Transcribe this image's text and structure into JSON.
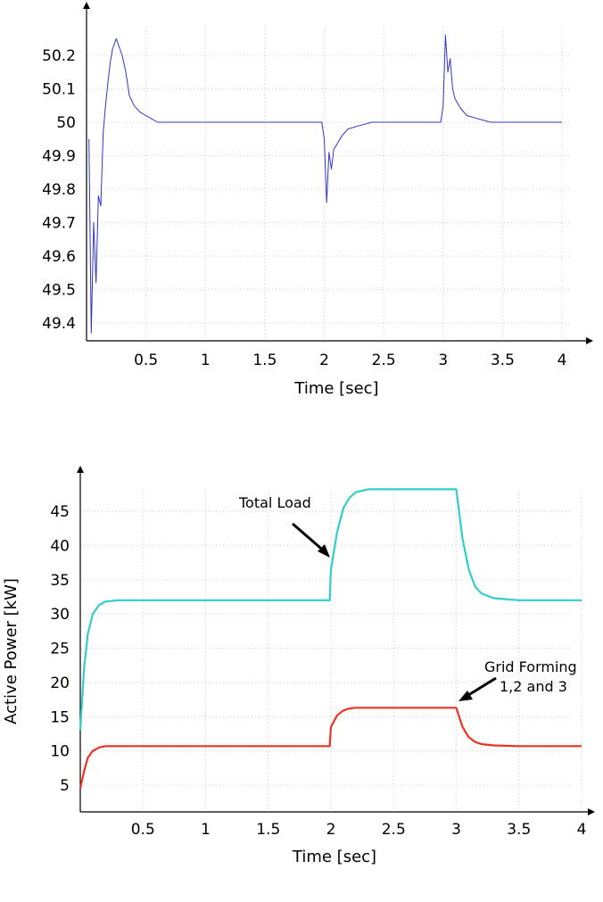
{
  "chart_data": [
    {
      "type": "line",
      "title": "",
      "xlabel": "Time [sec]",
      "ylabel": "",
      "xlim": [
        0,
        4.1
      ],
      "ylim": [
        49.33,
        50.3
      ],
      "grid": true,
      "xticks": [
        0.5,
        1,
        1.5,
        2,
        2.5,
        3,
        3.5,
        4
      ],
      "xtick_labels": [
        "0.5",
        "1",
        "1.5",
        "2",
        "2.5",
        "3",
        "3.5",
        "4"
      ],
      "yticks": [
        49.4,
        49.5,
        49.6,
        49.7,
        49.8,
        49.9,
        50,
        50.1,
        50.2
      ],
      "ytick_labels": [
        "49.4",
        "49.5",
        "49.6",
        "49.7",
        "49.8",
        "49.9",
        "50",
        "50.1",
        "50.2"
      ],
      "series": [
        {
          "color": "#3333cc",
          "x": [
            0.02,
            0.04,
            0.06,
            0.08,
            0.1,
            0.12,
            0.14,
            0.16,
            0.18,
            0.2,
            0.22,
            0.25,
            0.28,
            0.3,
            0.33,
            0.36,
            0.4,
            0.45,
            0.5,
            0.55,
            0.6,
            0.65,
            0.7,
            0.75,
            0.8,
            0.9,
            1.0,
            1.2,
            1.5,
            1.8,
            1.98,
            2.0,
            2.02,
            2.04,
            2.06,
            2.08,
            2.1,
            2.15,
            2.2,
            2.3,
            2.4,
            2.5,
            2.6,
            2.8,
            2.98,
            3.0,
            3.02,
            3.04,
            3.06,
            3.08,
            3.1,
            3.15,
            3.2,
            3.3,
            3.4,
            3.5,
            3.7,
            4.0
          ],
          "y": [
            49.95,
            49.37,
            49.7,
            49.52,
            49.78,
            49.75,
            49.97,
            50.05,
            50.12,
            50.18,
            50.22,
            50.25,
            50.22,
            50.2,
            50.15,
            50.08,
            50.05,
            50.03,
            50.02,
            50.01,
            50.0,
            50.0,
            50.0,
            50.0,
            50.0,
            50.0,
            50.0,
            50.0,
            50.0,
            50.0,
            50.0,
            49.95,
            49.76,
            49.91,
            49.86,
            49.92,
            49.93,
            49.96,
            49.98,
            49.99,
            50.0,
            50.0,
            50.0,
            50.0,
            50.0,
            50.05,
            50.26,
            50.15,
            50.19,
            50.1,
            50.07,
            50.04,
            50.02,
            50.01,
            50.0,
            50.0,
            50.0,
            50.0
          ]
        }
      ]
    },
    {
      "type": "line",
      "title": "",
      "xlabel": "Time [sec]",
      "ylabel": "Active Power  [kW]",
      "xlim": [
        0,
        4
      ],
      "ylim": [
        2,
        49.5
      ],
      "grid": true,
      "xticks": [
        0.5,
        1,
        1.5,
        2,
        2.5,
        3,
        3.5,
        4
      ],
      "xtick_labels": [
        "0.5",
        "1",
        "1.5",
        "2",
        "2.5",
        "3",
        "3.5",
        "4"
      ],
      "yticks": [
        5,
        10,
        15,
        20,
        25,
        30,
        35,
        40,
        45
      ],
      "ytick_labels": [
        "5",
        "10",
        "15",
        "20",
        "25",
        "30",
        "35",
        "40",
        "45"
      ],
      "annotations": [
        {
          "text": "Total Load",
          "x": 2.0,
          "y": 36.8
        },
        {
          "text": "Grid Forming 1,2 and 3",
          "lines": [
            "Grid Forming",
            "1,2 and 3"
          ],
          "x": 3.0,
          "y": 16.5
        }
      ],
      "series": [
        {
          "color": "#33cccc",
          "x": [
            0.0,
            0.03,
            0.06,
            0.1,
            0.15,
            0.2,
            0.3,
            0.5,
            1.0,
            1.5,
            1.99,
            2.0,
            2.05,
            2.1,
            2.15,
            2.2,
            2.3,
            2.5,
            2.8,
            2.99,
            3.0,
            3.05,
            3.1,
            3.15,
            3.2,
            3.3,
            3.5,
            4.0
          ],
          "y": [
            13,
            22,
            27,
            30,
            31.3,
            31.8,
            32,
            32,
            32,
            32,
            32,
            36.5,
            42,
            45.5,
            47,
            47.8,
            48.2,
            48.2,
            48.2,
            48.2,
            48.2,
            41,
            36.5,
            34,
            33,
            32.3,
            32,
            32
          ]
        },
        {
          "color": "#ee3322",
          "x": [
            0.0,
            0.03,
            0.06,
            0.1,
            0.15,
            0.2,
            0.3,
            0.5,
            1.0,
            1.5,
            1.99,
            2.0,
            2.05,
            2.1,
            2.15,
            2.2,
            2.3,
            2.5,
            2.8,
            2.99,
            3.0,
            3.05,
            3.1,
            3.15,
            3.2,
            3.3,
            3.5,
            4.0
          ],
          "y": [
            4.5,
            7,
            9,
            10,
            10.5,
            10.7,
            10.7,
            10.7,
            10.7,
            10.7,
            10.7,
            13.5,
            15.2,
            15.9,
            16.2,
            16.3,
            16.3,
            16.3,
            16.3,
            16.3,
            16.3,
            13.5,
            12,
            11.3,
            11,
            10.8,
            10.7,
            10.7
          ]
        }
      ]
    }
  ]
}
